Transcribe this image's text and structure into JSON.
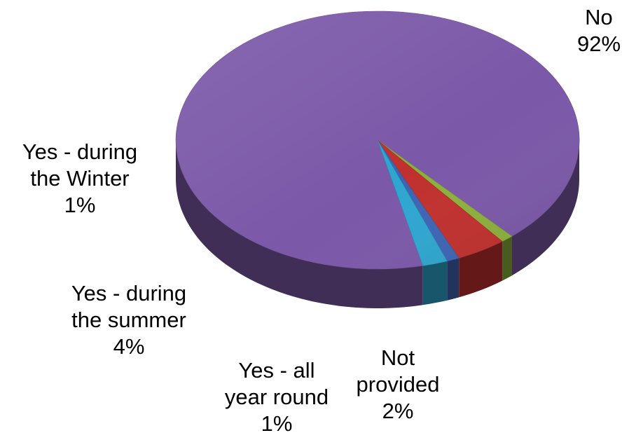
{
  "chart_data": {
    "type": "pie",
    "title": "",
    "slices": [
      {
        "label_lines": [
          "No"
        ],
        "value_label": "92%",
        "value": 92,
        "color": "#7b58a8"
      },
      {
        "label_lines": [
          "Yes - during",
          "the Winter"
        ],
        "value_label": "1%",
        "value": 1,
        "color": "#8cb03c"
      },
      {
        "label_lines": [
          "Yes - during",
          "the summer"
        ],
        "value_label": "4%",
        "value": 4,
        "color": "#c0302e"
      },
      {
        "label_lines": [
          "Yes - all",
          "year round"
        ],
        "value_label": "1%",
        "value": 1,
        "color": "#3d64b4"
      },
      {
        "label_lines": [
          "Not",
          "provided"
        ],
        "value_label": "2%",
        "value": 2,
        "color": "#2ea6cf"
      }
    ]
  }
}
